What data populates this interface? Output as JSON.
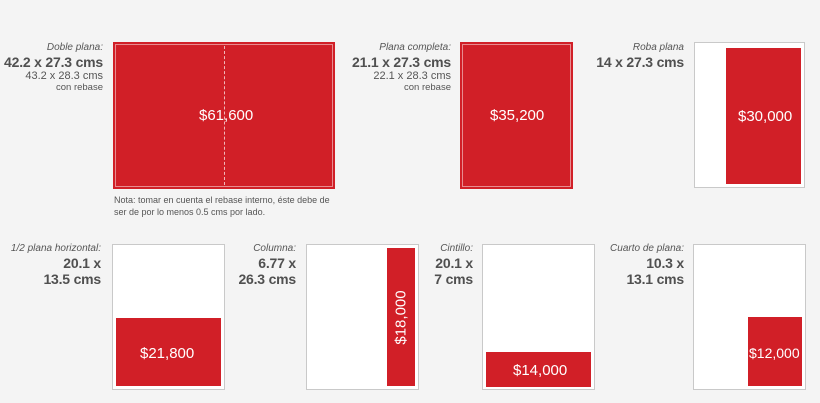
{
  "colors": {
    "accent": "#d11f27",
    "background": "#f4f4f4",
    "page": "#ffffff"
  },
  "top_row": {
    "doble_plana": {
      "name": "Doble plana:",
      "size": "42.2 x 27.3 cms",
      "size_bleed": "43.2 x 28.3 cms",
      "bleed_note": "con rebase",
      "price": "$61,600",
      "note_line1": "Nota: tomar en cuenta el rebase interno, éste debe de",
      "note_line2": "ser de por lo menos 0.5 cms por lado."
    },
    "plana_completa": {
      "name": "Plana completa:",
      "size": "21.1 x 27.3 cms",
      "size_bleed": "22.1 x 28.3 cms",
      "bleed_note": "con rebase",
      "price": "$35,200"
    },
    "roba_plana": {
      "name": "Roba plana",
      "size": "14 x 27.3 cms",
      "price": "$30,000"
    }
  },
  "bottom_row": {
    "media_plana": {
      "name": "1/2 plana horizontal:",
      "size_line1": "20.1 x",
      "size_line2": "13.5 cms",
      "price": "$21,800"
    },
    "columna": {
      "name": "Columna:",
      "size_line1": "6.77 x",
      "size_line2": "26.3 cms",
      "price": "$18,000"
    },
    "cintillo": {
      "name": "Cintillo:",
      "size_line1": "20.1 x",
      "size_line2": "7 cms",
      "price": "$14,000"
    },
    "cuarto_plana": {
      "name": "Cuarto de plana:",
      "size_line1": "10.3 x",
      "size_line2": "13.1 cms",
      "price": "$12,000"
    }
  }
}
